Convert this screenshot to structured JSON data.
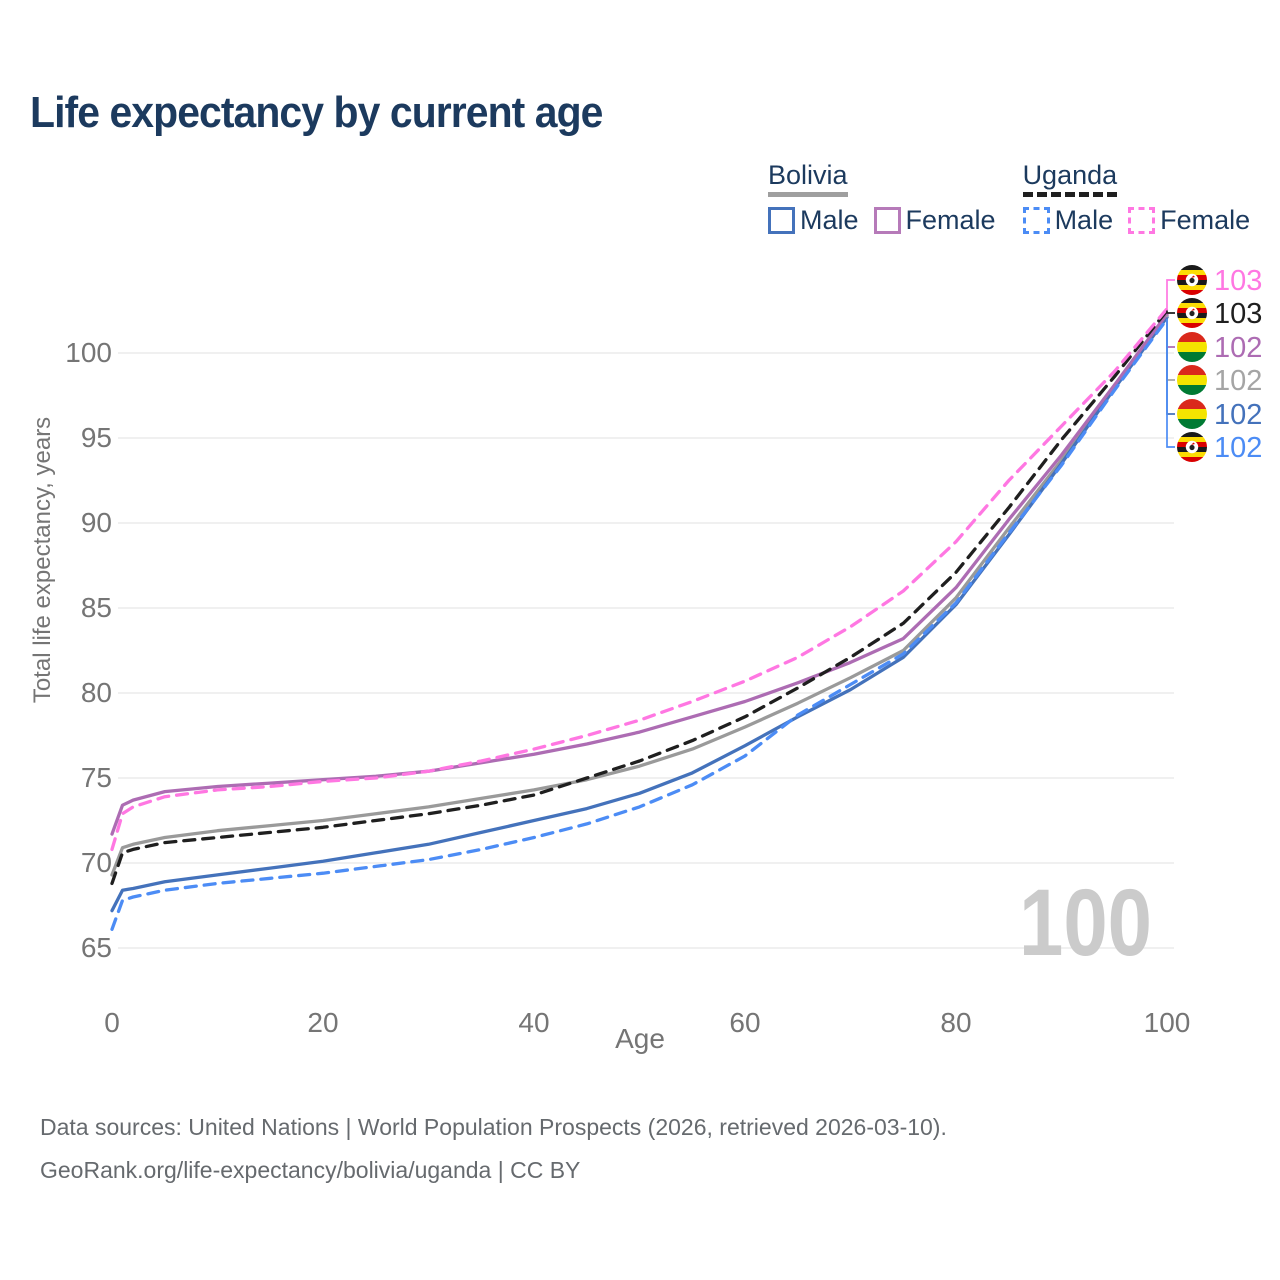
{
  "title": "Life expectancy by current age",
  "watermark_age": "100",
  "legend": {
    "groups": [
      {
        "country": "Bolivia",
        "line_style": "solid",
        "underline_color": "#9f9f9f",
        "items": [
          {
            "label": "Male",
            "color": "#4472bb",
            "dashed": false
          },
          {
            "label": "Female",
            "color": "#b67ab9",
            "dashed": false
          }
        ]
      },
      {
        "country": "Uganda",
        "line_style": "dashed",
        "underline_color": "#1f1f1f",
        "items": [
          {
            "label": "Male",
            "color": "#4c8cf5",
            "dashed": true
          },
          {
            "label": "Female",
            "color": "#ff77e2",
            "dashed": true
          }
        ]
      }
    ]
  },
  "y_axis": {
    "title": "Total life expectancy, years",
    "ticks": [
      65,
      70,
      75,
      80,
      85,
      90,
      95,
      100
    ]
  },
  "x_axis": {
    "title": "Age",
    "ticks": [
      0,
      20,
      40,
      60,
      80,
      100
    ]
  },
  "end_labels": [
    {
      "value": "103",
      "color": "#ff77e2",
      "flag": "uganda-flag-icon",
      "series_key": "uganda_female"
    },
    {
      "value": "103",
      "color": "#1f1f1f",
      "flag": "uganda-flag-icon",
      "series_key": "uganda_total"
    },
    {
      "value": "102",
      "color": "#ad6cb3",
      "flag": "bolivia-flag-icon",
      "series_key": "bolivia_female"
    },
    {
      "value": "102",
      "color": "#a5a5a5",
      "flag": "bolivia-flag-icon",
      "series_key": "bolivia_total"
    },
    {
      "value": "102",
      "color": "#4472bb",
      "flag": "bolivia-flag-icon",
      "series_key": "bolivia_male"
    },
    {
      "value": "102",
      "color": "#4c8cf5",
      "flag": "uganda-flag-icon",
      "series_key": "uganda_male"
    }
  ],
  "flag_colors": {
    "uganda": [
      "#1a1a1a",
      "#fcdc04",
      "#d90000",
      "#1a1a1a",
      "#fcdc04",
      "#d90000"
    ],
    "bolivia": [
      "#da291c",
      "#f4e400",
      "#007a33"
    ]
  },
  "footer": {
    "line1": "Data sources: United Nations | World Population Prospects (2026, retrieved 2026-03-10).",
    "line2": "GeoRank.org/life-expectancy/bolivia/uganda | CC BY"
  },
  "chart_data": {
    "type": "line",
    "title": "Life expectancy by current age",
    "xlabel": "Age",
    "ylabel": "Total life expectancy, years",
    "xlim": [
      0,
      100
    ],
    "ylim": [
      65,
      103.5
    ],
    "grid": "horizontal",
    "x": [
      0,
      1,
      2,
      5,
      10,
      15,
      20,
      25,
      30,
      35,
      40,
      45,
      50,
      55,
      60,
      65,
      70,
      75,
      80,
      85,
      90,
      95,
      100
    ],
    "series": [
      {
        "key": "bolivia_total",
        "name": "Bolivia (both sexes)",
        "color": "#9a9a9a",
        "dash": "solid",
        "values": [
          69.3,
          70.9,
          71.1,
          71.5,
          71.9,
          72.2,
          72.5,
          72.9,
          73.3,
          73.8,
          74.3,
          74.9,
          75.7,
          76.7,
          78.0,
          79.4,
          80.9,
          82.5,
          85.6,
          89.7,
          93.7,
          98.0,
          102.2
        ]
      },
      {
        "key": "bolivia_male",
        "name": "Bolivia Male",
        "color": "#4472bb",
        "dash": "solid",
        "values": [
          67.2,
          68.4,
          68.5,
          68.9,
          69.3,
          69.7,
          70.1,
          70.6,
          71.1,
          71.8,
          72.5,
          73.2,
          74.1,
          75.3,
          76.9,
          78.6,
          80.2,
          82.1,
          85.2,
          89.3,
          93.5,
          97.9,
          102.1
        ]
      },
      {
        "key": "bolivia_female",
        "name": "Bolivia Female",
        "color": "#ad6cb3",
        "dash": "solid",
        "values": [
          71.7,
          73.4,
          73.7,
          74.2,
          74.5,
          74.7,
          74.9,
          75.1,
          75.4,
          75.9,
          76.4,
          77.0,
          77.7,
          78.6,
          79.5,
          80.6,
          81.8,
          83.2,
          86.2,
          90.2,
          94.0,
          98.1,
          102.3
        ]
      },
      {
        "key": "uganda_total",
        "name": "Uganda (both sexes)",
        "color": "#1f1f1f",
        "dash": "dashed",
        "values": [
          68.8,
          70.6,
          70.8,
          71.2,
          71.5,
          71.8,
          72.1,
          72.5,
          72.9,
          73.4,
          74.0,
          75.0,
          76.0,
          77.2,
          78.6,
          80.3,
          82.1,
          84.1,
          87.1,
          90.9,
          94.9,
          98.6,
          102.5
        ]
      },
      {
        "key": "uganda_male",
        "name": "Uganda Male",
        "color": "#4c8cf5",
        "dash": "dashed",
        "values": [
          66.1,
          67.8,
          68.0,
          68.4,
          68.8,
          69.1,
          69.4,
          69.8,
          70.2,
          70.8,
          71.5,
          72.3,
          73.3,
          74.6,
          76.3,
          78.7,
          80.5,
          82.3,
          85.3,
          89.4,
          93.4,
          97.8,
          102.0
        ]
      },
      {
        "key": "uganda_female",
        "name": "Uganda Female",
        "color": "#ff77e2",
        "dash": "dashed",
        "values": [
          70.8,
          72.9,
          73.3,
          73.9,
          74.3,
          74.5,
          74.8,
          75.0,
          75.4,
          76.0,
          76.7,
          77.5,
          78.4,
          79.5,
          80.7,
          82.1,
          83.9,
          86.0,
          88.9,
          92.5,
          95.7,
          98.9,
          102.6
        ]
      }
    ],
    "legend_position": "top-right"
  }
}
